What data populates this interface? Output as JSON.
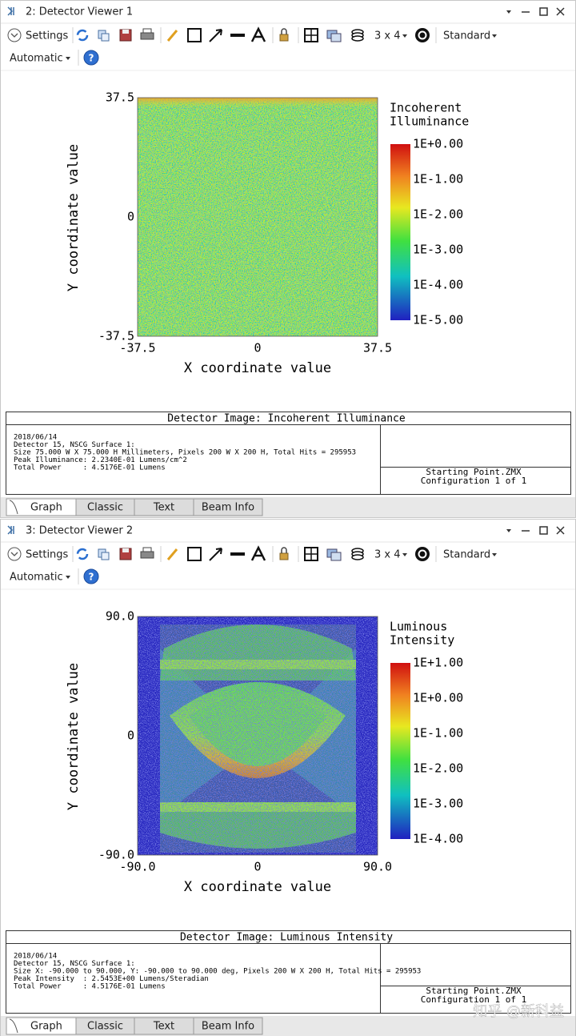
{
  "windows": [
    {
      "title": "2: Detector Viewer 1",
      "toolbar": {
        "settings": "Settings",
        "layout": "3 x 4",
        "style": "Standard",
        "mode": "Automatic"
      },
      "plot": {
        "x_label": "X coordinate value",
        "y_label": "Y coordinate value",
        "x_ticks": [
          "-37.5",
          "0",
          "37.5"
        ],
        "y_ticks": [
          "37.5",
          "0",
          "-37.5"
        ],
        "legend_title": [
          "Incoherent",
          "Illuminance"
        ],
        "legend_ticks": [
          "1E+0.00",
          "1E-1.00",
          "1E-2.00",
          "1E-3.00",
          "1E-4.00",
          "1E-5.00"
        ]
      },
      "info": {
        "title": "Detector Image: Incoherent Illuminance",
        "lines": [
          "2018/06/14",
          "Detector 15, NSCG Surface 1:",
          "Size 75.000 W X 75.000 H Millimeters, Pixels 200 W X 200 H, Total Hits = 295953",
          "Peak Illuminance: 2.2340E-01 Lumens/cm^2",
          "Total Power     : 4.5176E-01 Lumens"
        ],
        "file": "Starting Point.ZMX",
        "config": "Configuration 1 of 1"
      },
      "tabs": [
        "Graph",
        "Classic",
        "Text",
        "Beam Info"
      ]
    },
    {
      "title": "3: Detector Viewer 2",
      "toolbar": {
        "settings": "Settings",
        "layout": "3 x 4",
        "style": "Standard",
        "mode": "Automatic"
      },
      "plot": {
        "x_label": "X coordinate value",
        "y_label": "Y coordinate value",
        "x_ticks": [
          "-90.0",
          "0",
          "90.0"
        ],
        "y_ticks": [
          "90.0",
          "0",
          "-90.0"
        ],
        "legend_title": [
          "Luminous",
          "Intensity"
        ],
        "legend_ticks": [
          "1E+1.00",
          "1E+0.00",
          "1E-1.00",
          "1E-2.00",
          "1E-3.00",
          "1E-4.00"
        ]
      },
      "info": {
        "title": "Detector Image: Luminous Intensity",
        "lines": [
          "2018/06/14",
          "Detector 15, NSCG Surface 1:",
          "Size X: -90.000 to 90.000, Y: -90.000 to 90.000 deg, Pixels 200 W X 200 H, Total Hits = 295953",
          "Peak Intensity  : 2.5453E+00 Lumens/Steradian",
          "Total Power     : 4.5176E-01 Lumens"
        ],
        "file": "Starting Point.ZMX",
        "config": "Configuration 1 of 1"
      },
      "tabs": [
        "Graph",
        "Classic",
        "Text",
        "Beam Info"
      ]
    }
  ],
  "watermark": "知乎 @新科益"
}
